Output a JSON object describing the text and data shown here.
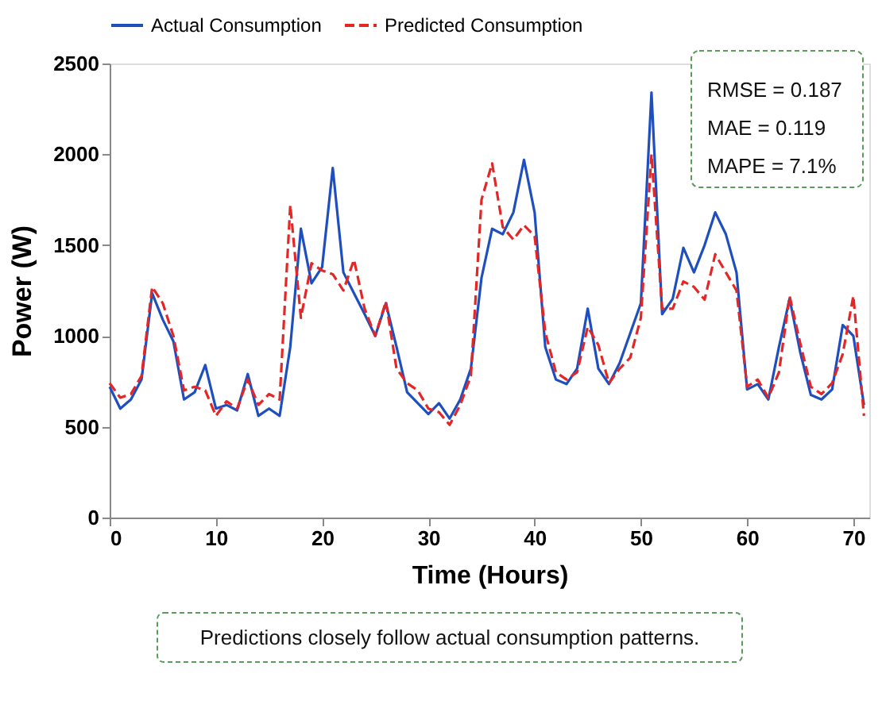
{
  "chart_data": {
    "type": "line",
    "xlabel": "Time (Hours)",
    "ylabel": "Power (W)",
    "x": [
      0,
      1,
      2,
      3,
      4,
      5,
      6,
      7,
      8,
      9,
      10,
      11,
      12,
      13,
      14,
      15,
      16,
      17,
      18,
      19,
      20,
      21,
      22,
      23,
      24,
      25,
      26,
      27,
      28,
      29,
      30,
      31,
      32,
      33,
      34,
      35,
      36,
      37,
      38,
      39,
      40,
      41,
      42,
      43,
      44,
      45,
      46,
      47,
      48,
      49,
      50,
      51,
      52,
      53,
      54,
      55,
      56,
      57,
      58,
      59,
      60,
      61,
      62,
      63,
      64,
      65,
      66,
      67,
      68,
      69,
      70,
      71
    ],
    "series": [
      {
        "name": "Actual Consumption",
        "color": "#1f4fbf",
        "line_style": "solid",
        "values": [
          720,
          600,
          650,
          760,
          1235,
          1090,
          970,
          650,
          690,
          840,
          600,
          620,
          590,
          790,
          560,
          600,
          560,
          940,
          1590,
          1290,
          1380,
          1925,
          1350,
          1235,
          1120,
          1000,
          1180,
          940,
          690,
          630,
          570,
          630,
          545,
          650,
          820,
          1320,
          1590,
          1560,
          1680,
          1970,
          1680,
          940,
          760,
          735,
          820,
          1150,
          820,
          735,
          850,
          1015,
          1180,
          2340,
          1120,
          1205,
          1485,
          1350,
          1500,
          1680,
          1560,
          1350,
          705,
          735,
          650,
          940,
          1205,
          910,
          675,
          650,
          705,
          1060,
          1000,
          620
        ]
      },
      {
        "name": "Predicted Consumption",
        "color": "#e32626",
        "line_style": "dashed",
        "values": [
          740,
          660,
          680,
          780,
          1270,
          1180,
          1000,
          700,
          720,
          700,
          560,
          640,
          600,
          760,
          620,
          680,
          650,
          1720,
          1100,
          1400,
          1360,
          1340,
          1250,
          1420,
          1150,
          1000,
          1190,
          820,
          740,
          700,
          600,
          580,
          510,
          620,
          780,
          1750,
          1950,
          1600,
          1530,
          1610,
          1550,
          1020,
          800,
          760,
          800,
          1050,
          950,
          740,
          820,
          880,
          1100,
          2000,
          1150,
          1150,
          1300,
          1270,
          1200,
          1450,
          1350,
          1250,
          720,
          760,
          660,
          800,
          1220,
          960,
          720,
          680,
          740,
          900,
          1220,
          560
        ]
      }
    ],
    "xlim": [
      0,
      71.5
    ],
    "xticks": [
      0,
      10,
      20,
      30,
      40,
      50,
      60,
      70
    ],
    "ylim": [
      0,
      2500
    ],
    "yticks": [
      0,
      500,
      1000,
      1500,
      2000,
      2500
    ],
    "grid": false,
    "legend": "top",
    "annotations": [
      "RMSE  = 0.187",
      "MAE    = 0.119",
      "MAPE  = 7.1%",
      "Predictions closely follow actual consumption patterns."
    ]
  }
}
